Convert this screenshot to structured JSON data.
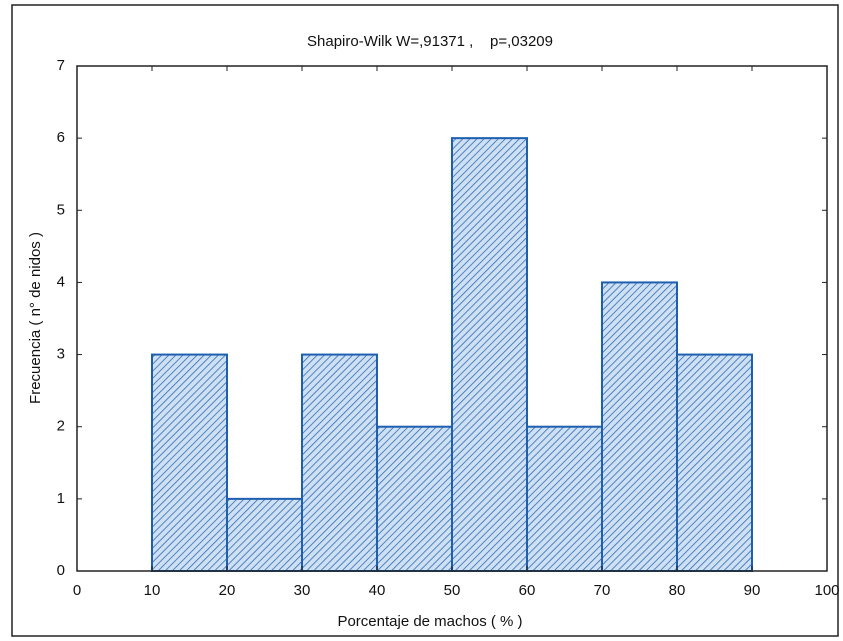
{
  "chart_data": {
    "type": "histogram",
    "title": "Shapiro-Wilk W=,91371 ,    p=,03209",
    "xlabel": "Porcentaje de machos ( % )",
    "ylabel": "Frecuencia ( n° de nidos )",
    "bins": [
      10,
      20,
      30,
      40,
      50,
      60,
      70,
      80,
      90
    ],
    "values": [
      3,
      1,
      3,
      2,
      6,
      2,
      4,
      3
    ],
    "color": "#1f5fb0",
    "xlim": [
      0,
      100
    ],
    "xticks": [
      0,
      10,
      20,
      30,
      40,
      50,
      60,
      70,
      80,
      90,
      100
    ],
    "ylim": [
      0,
      7
    ],
    "yticks": [
      0,
      1,
      2,
      3,
      4,
      5,
      6,
      7
    ]
  }
}
